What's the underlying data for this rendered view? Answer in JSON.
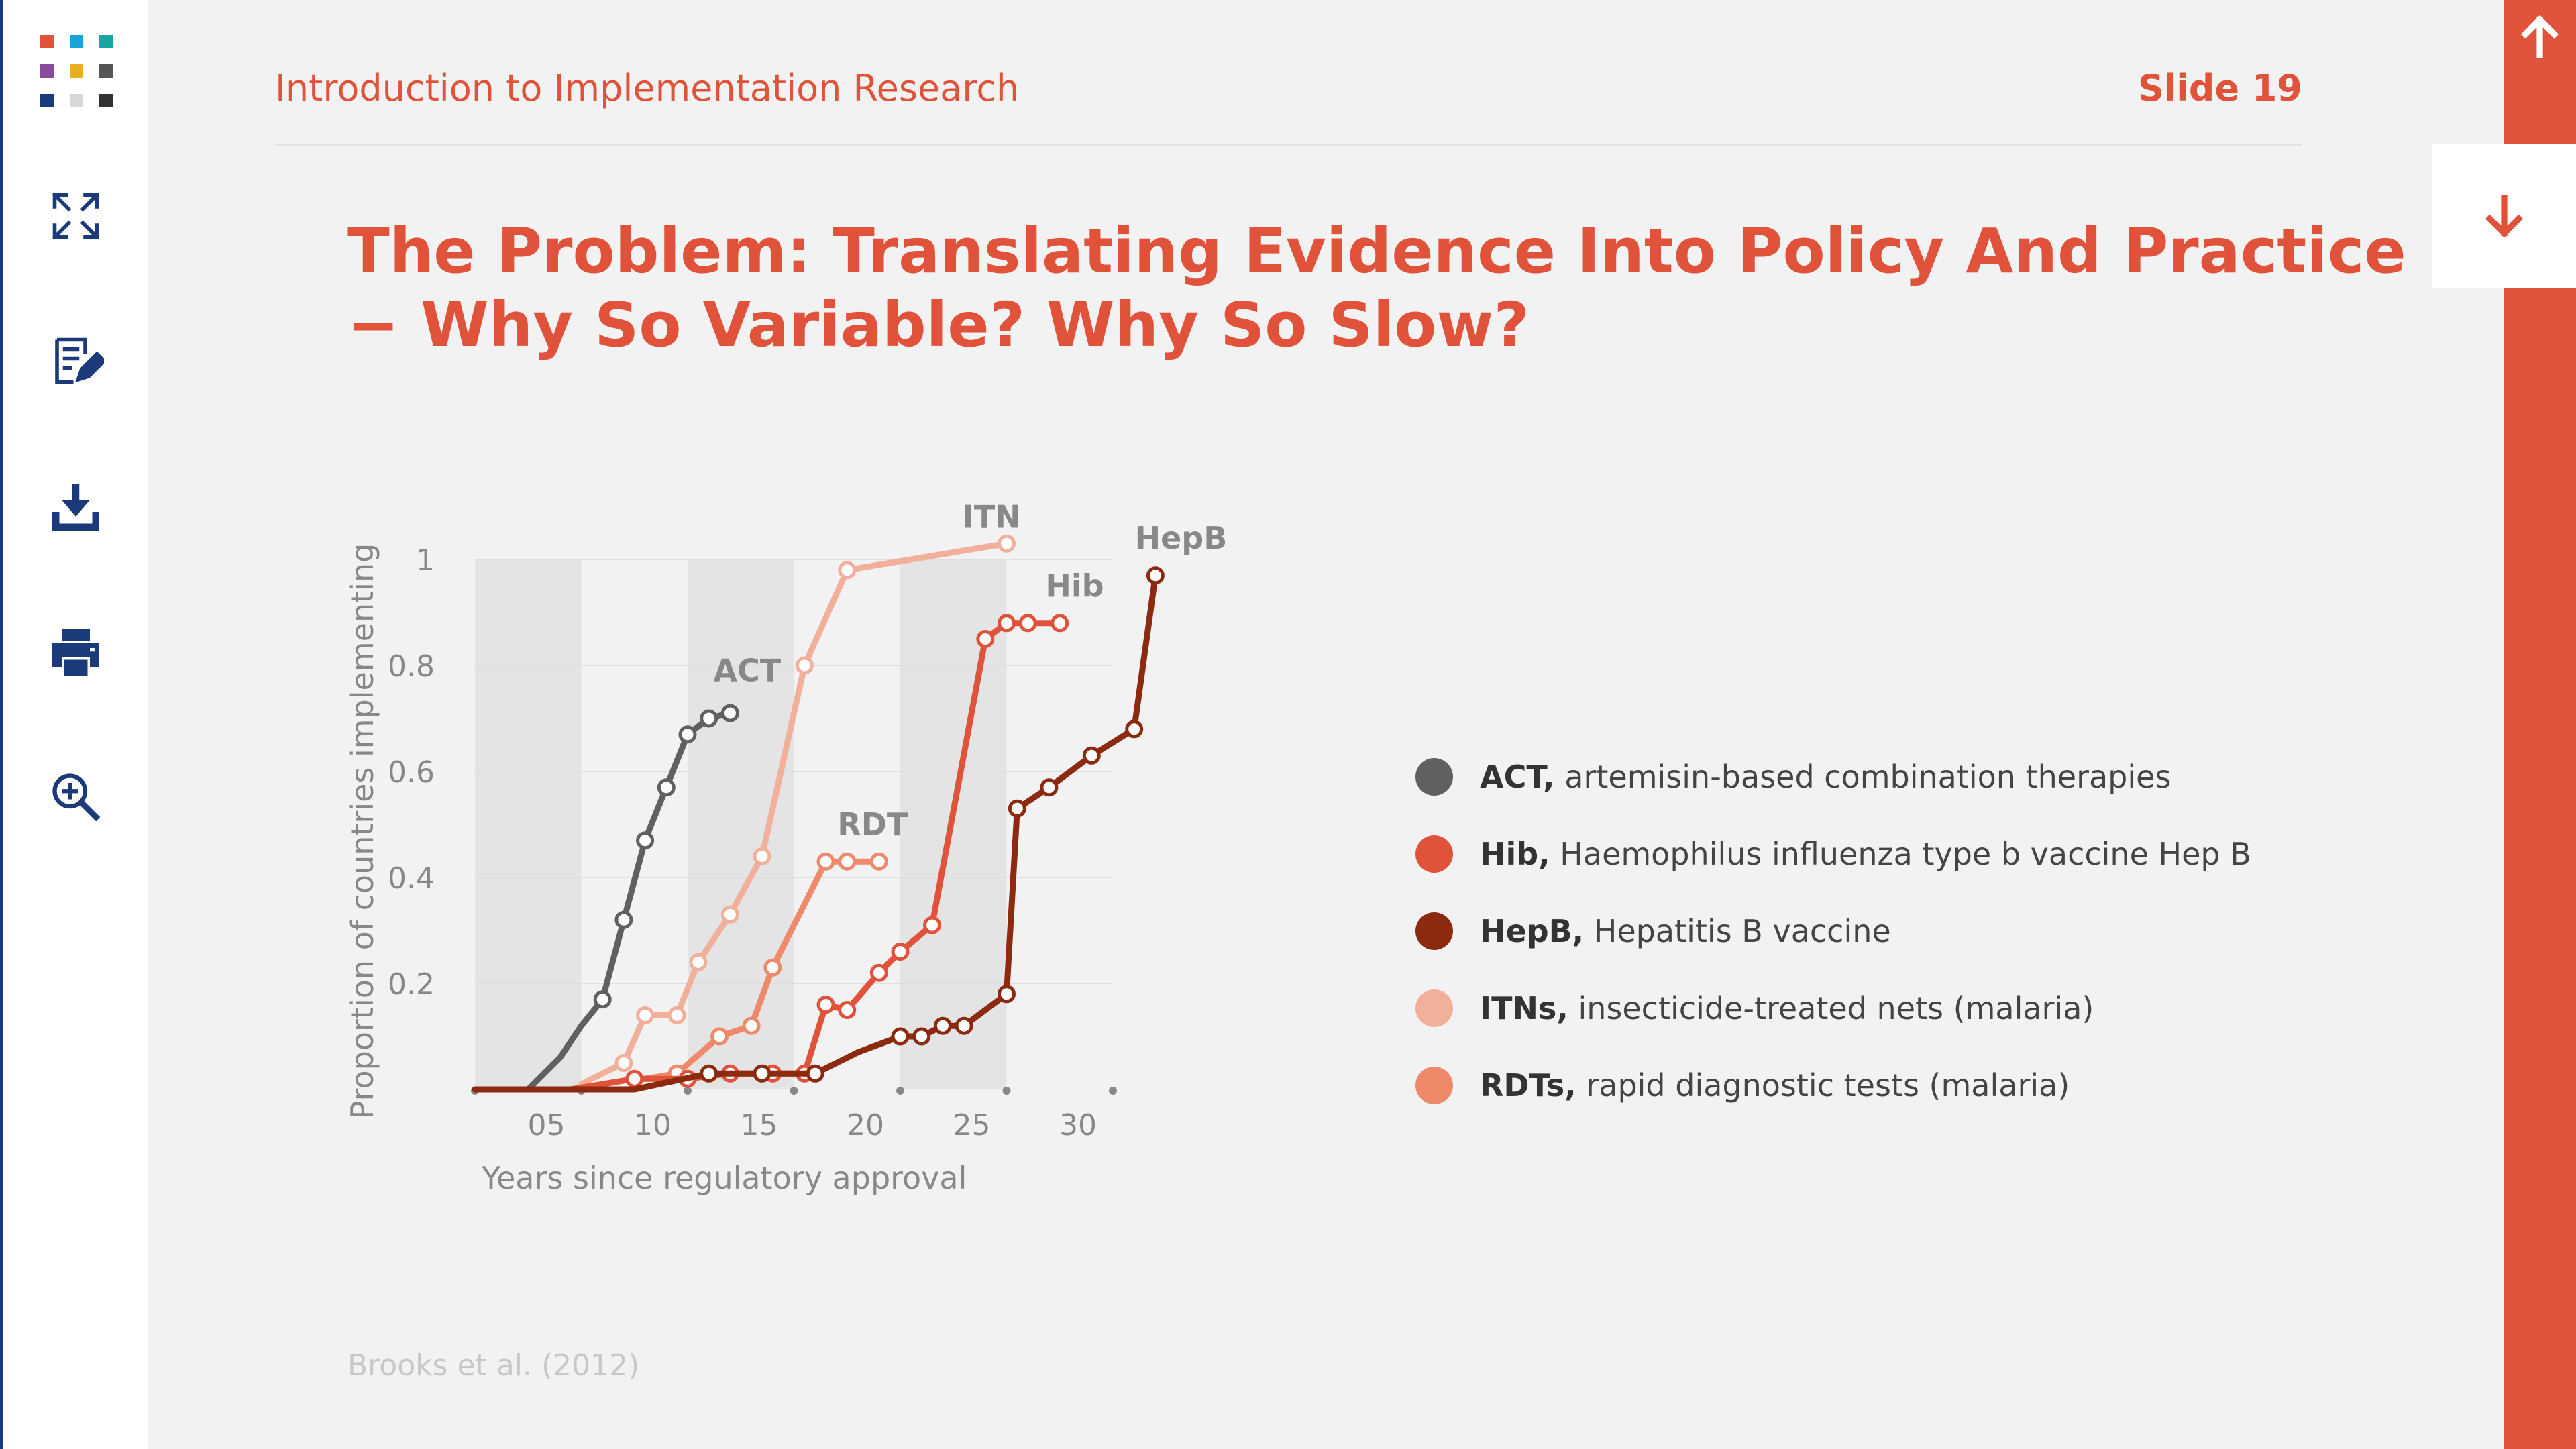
{
  "header": {
    "course_title": "Introduction to Implementation Research",
    "slide_label": "Slide 19"
  },
  "slide": {
    "title_line1": "The Problem: Translating Evidence Into Policy And Practice",
    "title_line2": "− Why So Variable? Why So Slow?",
    "citation": "Brooks et al. (2012)"
  },
  "sidebar": {
    "icons": [
      "fullscreen-icon",
      "notes-icon",
      "download-icon",
      "print-icon",
      "zoom-in-icon"
    ],
    "logo_colors": [
      "#e0533a",
      "#1aa3d9",
      "#1aa3a3",
      "#8a4a9a",
      "#e6b020",
      "#555555",
      "#1a3a7a",
      "#d8d8d8",
      "#333333"
    ]
  },
  "nav": {
    "up": "arrow-up-icon",
    "down": "arrow-down-icon"
  },
  "legend": [
    {
      "abbr": "ACT,",
      "desc": " artemisin-based combination therapies",
      "color": "#606060"
    },
    {
      "abbr": "Hib,",
      "desc": " Haemophilus influenza type b vaccine Hep B",
      "color": "#e0533a"
    },
    {
      "abbr": "HepB,",
      "desc": " Hepatitis B vaccine",
      "color": "#8c2a10"
    },
    {
      "abbr": "ITNs,",
      "desc": " insecticide-treated nets (malaria)",
      "color": "#f2b09a"
    },
    {
      "abbr": "RDTs,",
      "desc": " rapid diagnostic tests (malaria)",
      "color": "#ee8a6a"
    }
  ],
  "chart_data": {
    "type": "line",
    "xlabel": "Years since regulatory approval",
    "ylabel": "Proportion of countries implementing",
    "xlim": [
      0,
      30
    ],
    "ylim": [
      0,
      1
    ],
    "xticks": [
      5,
      10,
      15,
      20,
      25,
      30
    ],
    "xtick_labels": [
      "05",
      "10",
      "15",
      "20",
      "25",
      "30"
    ],
    "yticks": [
      0.2,
      0.4,
      0.6,
      0.8,
      1
    ],
    "ytick_labels": [
      "0.2",
      "0.4",
      "0.6",
      "0.8",
      "1"
    ],
    "shaded_bands": [
      [
        0,
        5
      ],
      [
        10,
        15
      ],
      [
        20,
        25
      ]
    ],
    "grid": true,
    "series": [
      {
        "name": "ACT",
        "color": "#606060",
        "marker_fill": "#ffffff",
        "x": [
          0,
          2.5,
          4,
          5,
          6,
          7,
          8,
          9,
          10,
          11,
          12
        ],
        "y": [
          0,
          0,
          0.06,
          0.12,
          0.17,
          0.32,
          0.47,
          0.57,
          0.67,
          0.7,
          0.71
        ]
      },
      {
        "name": "ITN",
        "color": "#f2b09a",
        "marker_fill": "#ffffff",
        "x": [
          5,
          7,
          8,
          9.5,
          10.5,
          12,
          13.5,
          15.5,
          17.5,
          25
        ],
        "y": [
          0.01,
          0.05,
          0.14,
          0.14,
          0.24,
          0.33,
          0.44,
          0.8,
          0.98,
          1.03
        ]
      },
      {
        "name": "RDT",
        "color": "#ee8a6a",
        "marker_fill": "#ffffff",
        "x": [
          8,
          9.5,
          11.5,
          13,
          14,
          16.5,
          17.5,
          19
        ],
        "y": [
          0.02,
          0.03,
          0.1,
          0.12,
          0.23,
          0.43,
          0.43,
          0.43
        ]
      },
      {
        "name": "Hib",
        "color": "#e0533a",
        "marker_fill": "#ffffff",
        "x": [
          4.5,
          7.5,
          10,
          12,
          14,
          15.5,
          16.5,
          17.5,
          19,
          20,
          21.5,
          24,
          25,
          26,
          27.5
        ],
        "y": [
          0,
          0.02,
          0.02,
          0.03,
          0.03,
          0.03,
          0.16,
          0.15,
          0.22,
          0.26,
          0.31,
          0.85,
          0.88,
          0.88,
          0.88
        ]
      },
      {
        "name": "HepB",
        "color": "#8c2a10",
        "marker_fill": "#ffffff",
        "x": [
          0,
          7.5,
          11,
          13.5,
          16,
          18,
          20,
          21,
          22,
          23,
          25,
          25.5,
          27,
          29,
          31,
          32
        ],
        "y": [
          0,
          0,
          0.03,
          0.03,
          0.03,
          0.07,
          0.1,
          0.1,
          0.12,
          0.12,
          0.18,
          0.53,
          0.57,
          0.63,
          0.68,
          0.97
        ]
      }
    ],
    "annotations": [
      {
        "text": "ACT",
        "x": 12.8,
        "y": 0.77
      },
      {
        "text": "RDT",
        "x": 18.7,
        "y": 0.48
      },
      {
        "text": "ITN",
        "x": 24.3,
        "y": 1.06
      },
      {
        "text": "Hib",
        "x": 28.2,
        "y": 0.93
      },
      {
        "text": "HepB",
        "x": 33.2,
        "y": 1.02
      }
    ],
    "markers_shown": {
      "ACT": [
        4,
        5,
        6,
        7,
        8,
        9,
        10
      ],
      "ITN": [
        1,
        2,
        3,
        4,
        5,
        6,
        7,
        8,
        9
      ],
      "RDT": [
        1,
        2,
        3,
        4,
        5,
        6,
        7
      ],
      "Hib": [
        1,
        2,
        3,
        4,
        5,
        6,
        7,
        8,
        9,
        10,
        11,
        12,
        13,
        14
      ],
      "HepB": [
        2,
        3,
        4,
        6,
        7,
        8,
        9,
        10,
        11,
        12,
        13,
        14,
        15
      ]
    }
  }
}
